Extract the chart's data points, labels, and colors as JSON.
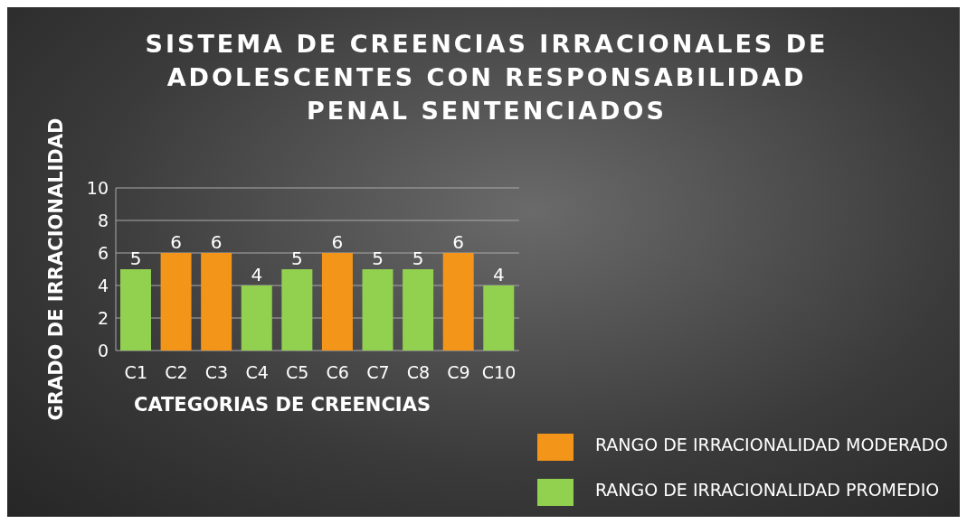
{
  "chart_data": {
    "type": "bar",
    "title": "SISTEMA DE CREENCIAS IRRACIONALES DE ADOLESCENTES CON RESPONSABILIDAD PENAL SENTENCIADOS",
    "xlabel": "CATEGORIAS DE CREENCIAS",
    "ylabel": "GRADO DE IRRACIONALIDAD",
    "categories": [
      "C1",
      "C2",
      "C3",
      "C4",
      "C5",
      "C6",
      "C7",
      "C8",
      "C9",
      "C10"
    ],
    "series": [
      {
        "name": "RANGO DE IRRACIONALIDAD  MODERADO",
        "color": "#f39519",
        "values": [
          null,
          6,
          6,
          null,
          null,
          6,
          null,
          null,
          6,
          null
        ]
      },
      {
        "name": "RANGO DE IRRACIONALIDAD  PROMEDIO",
        "color": "#92d050",
        "values": [
          5,
          null,
          null,
          4,
          5,
          null,
          5,
          5,
          null,
          4
        ]
      }
    ],
    "stacked": true,
    "ylim": [
      0,
      10
    ],
    "yticks": [
      0,
      2,
      4,
      6,
      8,
      10
    ],
    "grid": "y",
    "data_labels": true,
    "legend": "bottom right"
  }
}
